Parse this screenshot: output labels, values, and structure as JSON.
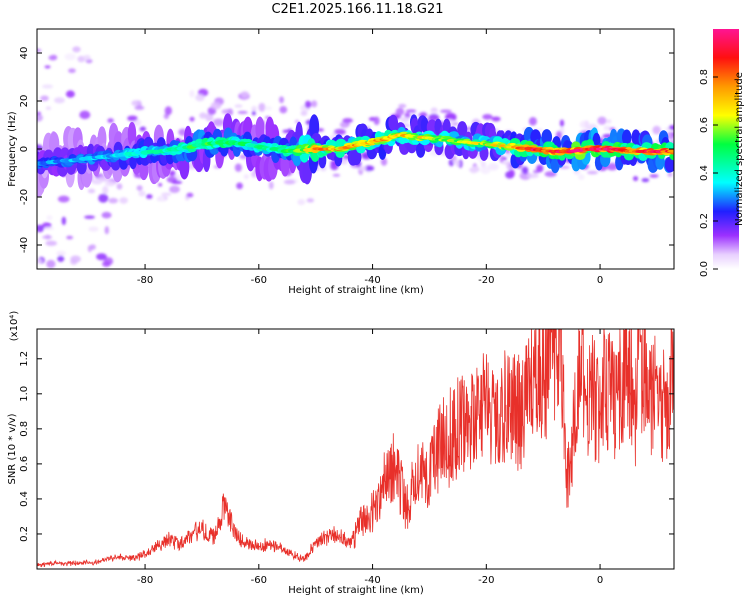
{
  "title": "C2E1.2025.166.11.18.G21",
  "colors": {
    "snr_line": "#e8302a",
    "spectrogram_ridge": "#ff1a33",
    "background": "#ffffff"
  },
  "chart_data": [
    {
      "type": "heatmap",
      "xlabel": "Height of straight line (km)",
      "ylabel": "Frequency (Hz)",
      "xlim": [
        -99,
        13
      ],
      "ylim": [
        -50,
        50
      ],
      "x_ticks": [
        -80,
        -60,
        -40,
        -20,
        0
      ],
      "x_tick_labels": [
        "-80",
        "-60",
        "-40",
        "-20",
        "0"
      ],
      "y_ticks": [
        40,
        20,
        0,
        -20,
        -40
      ],
      "y_tick_labels": [
        "40",
        "20",
        "0",
        "-20",
        "-40"
      ],
      "grid": false,
      "colorbar": {
        "label": "Normalized spectral amplitude",
        "range": [
          0,
          1
        ],
        "ticks": [
          0.0,
          0.2,
          0.4,
          0.6,
          0.8
        ],
        "tick_labels": [
          "0.0",
          "0.2",
          "0.4",
          "0.6",
          "0.8"
        ],
        "colormap": "rainbow (white-violet-blue-cyan-green-yellow-orange-red-pink)"
      },
      "ridge": {
        "x": [
          -98,
          -94,
          -90,
          -86,
          -82,
          -78,
          -74,
          -70,
          -66,
          -62,
          -58,
          -54,
          -50,
          -46,
          -42,
          -38,
          -35,
          -32,
          -28,
          -24,
          -20,
          -16,
          -12,
          -8,
          -5,
          -2,
          2,
          6,
          10,
          13
        ],
        "frequency": [
          -6,
          -5,
          -4,
          -3,
          -2,
          -1,
          0,
          2,
          3,
          2,
          0,
          -1,
          0,
          0,
          2,
          4,
          6,
          5,
          4,
          3,
          2,
          1,
          0,
          -1,
          -1,
          0,
          0,
          -1,
          -1,
          -1
        ],
        "amplitude": [
          0.3,
          0.3,
          0.32,
          0.34,
          0.4,
          0.4,
          0.45,
          0.5,
          0.5,
          0.45,
          0.42,
          0.5,
          0.75,
          0.7,
          0.7,
          0.72,
          0.68,
          0.65,
          0.6,
          0.6,
          0.6,
          0.7,
          0.9,
          0.85,
          0.9,
          0.95,
          0.95,
          0.8,
          0.9,
          0.85
        ]
      }
    },
    {
      "type": "line",
      "xlabel": "Height of straight line (km)",
      "ylabel": "SNR (10 * v/v)",
      "y_multiplier_label": "(x10⁴)",
      "xlim": [
        -99,
        13
      ],
      "ylim": [
        0,
        13700
      ],
      "x_ticks": [
        -80,
        -60,
        -40,
        -20,
        0
      ],
      "x_tick_labels": [
        "-80",
        "-60",
        "-40",
        "-20",
        "0"
      ],
      "y_ticks": [
        2000,
        4000,
        6000,
        8000,
        10000,
        12000
      ],
      "y_tick_labels": [
        "0.2",
        "0.4",
        "0.6",
        "0.8",
        "1.0",
        "1.2"
      ],
      "grid": false,
      "series": [
        {
          "x": [
            -99,
            -96,
            -92,
            -88,
            -85,
            -82,
            -80,
            -78,
            -76,
            -74,
            -72,
            -70,
            -68,
            -66,
            -64,
            -62,
            -60,
            -58,
            -56,
            -54,
            -52,
            -50,
            -48,
            -46,
            -44,
            -42,
            -40,
            -38,
            -36,
            -34,
            -32,
            -30,
            -28,
            -26,
            -24,
            -22,
            -20,
            -18,
            -16,
            -14,
            -12,
            -10,
            -8,
            -7,
            -6.5,
            -6,
            -5,
            -4,
            -2,
            -1,
            0,
            1,
            2,
            3,
            4,
            5,
            6,
            7,
            8,
            9,
            10,
            11,
            12,
            13
          ],
          "y": [
            200,
            300,
            300,
            400,
            600,
            600,
            800,
            1200,
            1600,
            1400,
            1800,
            2200,
            1700,
            3500,
            1800,
            1400,
            1200,
            1300,
            1100,
            800,
            500,
            1400,
            1700,
            1900,
            1200,
            2500,
            3000,
            4500,
            5500,
            3200,
            5500,
            4800,
            6500,
            7000,
            7800,
            7500,
            8500,
            7200,
            9200,
            8000,
            9600,
            10500,
            11500,
            13600,
            10000,
            4500,
            5500,
            11000,
            9000,
            9000,
            8000,
            10000,
            9200,
            9000,
            10000,
            11600,
            7500,
            10800,
            9800,
            9500,
            8800,
            8800,
            8000,
            12800
          ]
        }
      ]
    }
  ]
}
